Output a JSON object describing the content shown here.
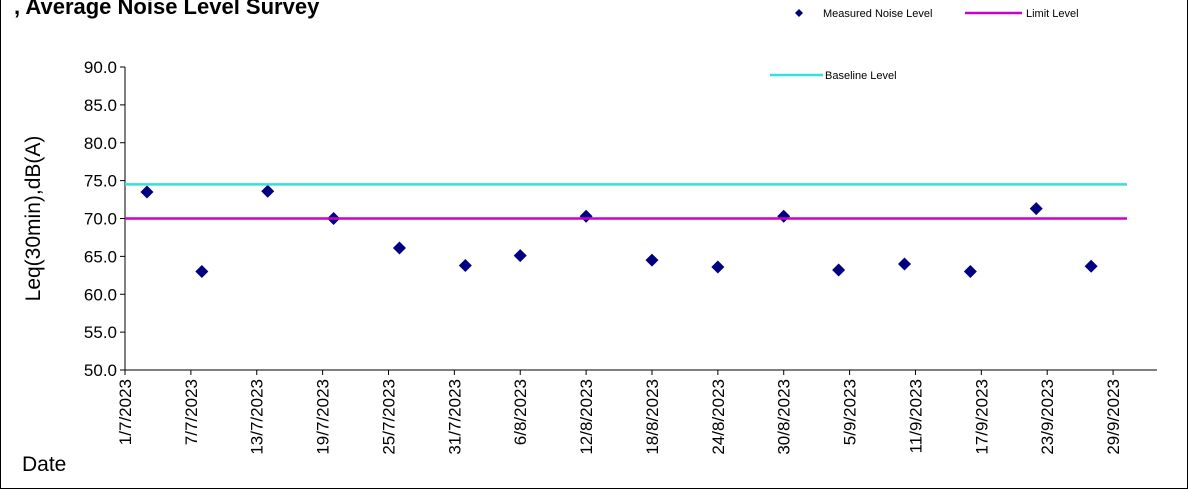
{
  "chart_data": {
    "type": "scatter",
    "title": ", Average Noise Level Survey",
    "xlabel": "Date",
    "ylabel": "Leq(30min),dB(A)",
    "ylim": [
      50,
      90
    ],
    "yticks": [
      "50.0",
      "55.0",
      "60.0",
      "65.0",
      "70.0",
      "75.0",
      "80.0",
      "85.0",
      "90.0"
    ],
    "xlim": [
      "1/7/2023",
      "3/10/2023"
    ],
    "xticks": [
      "1/7/2023",
      "7/7/2023",
      "13/7/2023",
      "19/7/2023",
      "25/7/2023",
      "31/7/2023",
      "6/8/2023",
      "12/8/2023",
      "18/8/2023",
      "24/8/2023",
      "30/8/2023",
      "5/9/2023",
      "11/9/2023",
      "17/9/2023",
      "23/9/2023",
      "29/9/2023"
    ],
    "grid": false,
    "legend": [
      "Measured Noise Level",
      "Limit Level",
      "Baseline Level"
    ],
    "series": [
      {
        "name": "Measured Noise Level",
        "marker": "diamond",
        "color": "#000080",
        "points": [
          {
            "x": "3/7/2023",
            "y": 73.5
          },
          {
            "x": "8/7/2023",
            "y": 63.0
          },
          {
            "x": "14/7/2023",
            "y": 73.6
          },
          {
            "x": "20/7/2023",
            "y": 70.0
          },
          {
            "x": "26/7/2023",
            "y": 66.1
          },
          {
            "x": "1/8/2023",
            "y": 63.8
          },
          {
            "x": "6/8/2023",
            "y": 65.1
          },
          {
            "x": "12/8/2023",
            "y": 70.3
          },
          {
            "x": "18/8/2023",
            "y": 64.5
          },
          {
            "x": "24/8/2023",
            "y": 63.6
          },
          {
            "x": "30/8/2023",
            "y": 70.3
          },
          {
            "x": "4/9/2023",
            "y": 63.2
          },
          {
            "x": "10/9/2023",
            "y": 64.0
          },
          {
            "x": "16/9/2023",
            "y": 63.0
          },
          {
            "x": "22/9/2023",
            "y": 71.3
          },
          {
            "x": "27/9/2023",
            "y": 63.7
          }
        ]
      },
      {
        "name": "Limit Level",
        "line": true,
        "color": "#cc00cc",
        "value": 70.0
      },
      {
        "name": "Baseline Level",
        "line": true,
        "color": "#33e0e0",
        "value": 74.5
      }
    ]
  }
}
